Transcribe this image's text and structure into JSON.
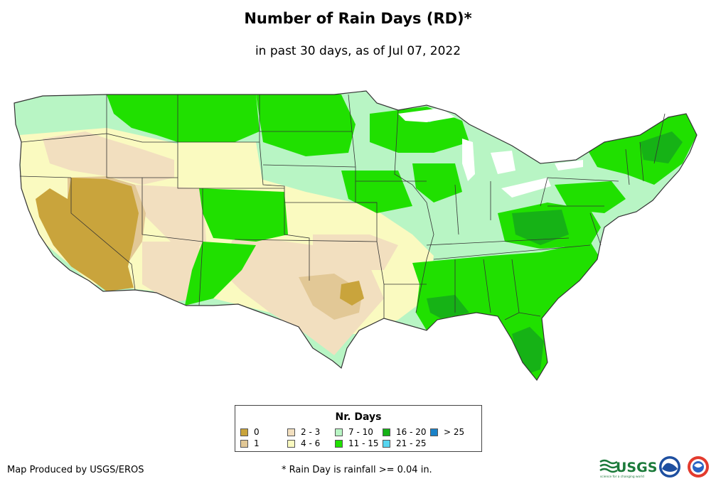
{
  "title": "Number of Rain Days (RD)*",
  "subtitle": "in past 30 days, as of Jul 07, 2022",
  "legend": {
    "title": "Nr. Days",
    "items": [
      {
        "label": "0",
        "color": "#c9a43c"
      },
      {
        "label": "1",
        "color": "#e2c896"
      },
      {
        "label": "2 - 3",
        "color": "#f2dfbf"
      },
      {
        "label": "4 - 6",
        "color": "#fafac0"
      },
      {
        "label": "7 - 10",
        "color": "#b8f5c4"
      },
      {
        "label": "11 - 15",
        "color": "#20e000"
      },
      {
        "label": "16 - 20",
        "color": "#16b216"
      },
      {
        "label": "21 - 25",
        "color": "#58d6f0"
      },
      {
        "label": "> 25",
        "color": "#1a82c8"
      }
    ]
  },
  "footer": {
    "credit": "Map Produced by USGS/EROS",
    "note": "* Rain Day is rainfall >= 0.04 in."
  },
  "logos": {
    "usgs_text": "USGS",
    "usgs_tagline": "science for a changing world"
  }
}
